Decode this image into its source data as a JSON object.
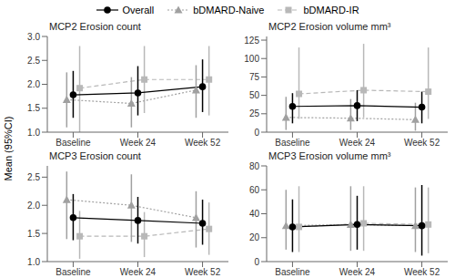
{
  "chart_data": [
    {
      "type": "line",
      "title": "MCP2 Erosion count",
      "ylabel": "Mean (95%CI)",
      "categories": [
        "Baseline",
        "Week 24",
        "Week 52"
      ],
      "ylim": [
        1,
        3
      ],
      "yticks": [
        {
          "value": 1,
          "label": "1.0"
        },
        1.5,
        {
          "value": 2,
          "label": "2.0"
        },
        2.5,
        {
          "value": 3,
          "label": "3.0"
        }
      ],
      "series": [
        {
          "name": "Overall",
          "color": "#000000",
          "marker": "circle",
          "line_style": "solid",
          "values": [
            1.78,
            1.82,
            1.95
          ],
          "ci_low": [
            1.3,
            1.35,
            1.42
          ],
          "ci_high": [
            2.28,
            2.38,
            2.52
          ]
        },
        {
          "name": "bDMARD-Naive",
          "color": "#a0a0a0",
          "marker": "triangle",
          "line_style": "dotted",
          "values": [
            1.68,
            1.6,
            1.88
          ],
          "ci_low": [
            1.1,
            1.1,
            1.3
          ],
          "ci_high": [
            2.25,
            2.15,
            2.4
          ]
        },
        {
          "name": "bDMARD-IR",
          "color": "#b8b8b8",
          "marker": "square",
          "line_style": "dashed",
          "values": [
            1.92,
            2.1,
            2.1
          ],
          "ci_low": [
            1.0,
            1.4,
            1.35
          ],
          "ci_high": [
            2.8,
            2.8,
            2.8
          ]
        }
      ]
    },
    {
      "type": "line",
      "title": "MCP2 Erosion volume mm³",
      "categories": [
        "Baseline",
        "Week 24",
        "Week 52"
      ],
      "ylim": [
        0,
        130
      ],
      "yticks": [
        0,
        25,
        50,
        75,
        100,
        125
      ],
      "series": [
        {
          "name": "Overall",
          "color": "#000000",
          "marker": "circle",
          "line_style": "solid",
          "values": [
            35,
            36,
            34
          ],
          "ci_low": [
            12,
            15,
            12
          ],
          "ci_high": [
            53,
            57,
            55
          ]
        },
        {
          "name": "bDMARD-Naive",
          "color": "#a0a0a0",
          "marker": "triangle",
          "line_style": "dotted",
          "values": [
            20,
            19,
            17
          ],
          "ci_low": [
            3,
            3,
            2
          ],
          "ci_high": [
            48,
            45,
            40
          ]
        },
        {
          "name": "bDMARD-IR",
          "color": "#b8b8b8",
          "marker": "square",
          "line_style": "dashed",
          "values": [
            52,
            57,
            55
          ],
          "ci_low": [
            18,
            20,
            18
          ],
          "ci_high": [
            115,
            120,
            115
          ]
        }
      ]
    },
    {
      "type": "line",
      "title": "MCP3 Erosion count",
      "categories": [
        "Baseline",
        "Week 24",
        "Week 52"
      ],
      "ylim": [
        1,
        2.7
      ],
      "yticks": [
        {
          "value": 1,
          "label": "1.0"
        },
        1.5,
        {
          "value": 2,
          "label": "2.0"
        },
        2.5
      ],
      "series": [
        {
          "name": "Overall",
          "color": "#000000",
          "marker": "circle",
          "line_style": "solid",
          "values": [
            1.78,
            1.73,
            1.68
          ],
          "ci_low": [
            1.38,
            1.32,
            1.3
          ],
          "ci_high": [
            2.2,
            2.15,
            2.1
          ]
        },
        {
          "name": "bDMARD-Naive",
          "color": "#a0a0a0",
          "marker": "triangle",
          "line_style": "dotted",
          "values": [
            2.1,
            2.0,
            1.78
          ],
          "ci_low": [
            1.4,
            1.35,
            1.25
          ],
          "ci_high": [
            2.6,
            2.55,
            2.25
          ]
        },
        {
          "name": "bDMARD-IR",
          "color": "#b8b8b8",
          "marker": "square",
          "line_style": "dashed",
          "values": [
            1.45,
            1.45,
            1.58
          ],
          "ci_low": [
            1.05,
            1.08,
            1.12
          ],
          "ci_high": [
            1.9,
            1.88,
            2.05
          ]
        }
      ]
    },
    {
      "type": "line",
      "title": "MCP3 Erosion volume mm³",
      "categories": [
        "Baseline",
        "Week 24",
        "Week 52"
      ],
      "ylim": [
        0,
        80
      ],
      "yticks": [
        0,
        20,
        40,
        60,
        80
      ],
      "series": [
        {
          "name": "Overall",
          "color": "#000000",
          "marker": "circle",
          "line_style": "solid",
          "values": [
            29,
            31,
            30
          ],
          "ci_low": [
            8,
            10,
            5
          ],
          "ci_high": [
            52,
            55,
            64
          ]
        },
        {
          "name": "bDMARD-Naive",
          "color": "#a0a0a0",
          "marker": "triangle",
          "line_style": "dotted",
          "values": [
            30,
            31,
            30
          ],
          "ci_low": [
            10,
            9,
            8
          ],
          "ci_high": [
            60,
            63,
            62
          ]
        },
        {
          "name": "bDMARD-IR",
          "color": "#b8b8b8",
          "marker": "square",
          "line_style": "dashed",
          "values": [
            29,
            32,
            31
          ],
          "ci_low": [
            8,
            9,
            7
          ],
          "ci_high": [
            63,
            63,
            62
          ]
        }
      ]
    }
  ]
}
